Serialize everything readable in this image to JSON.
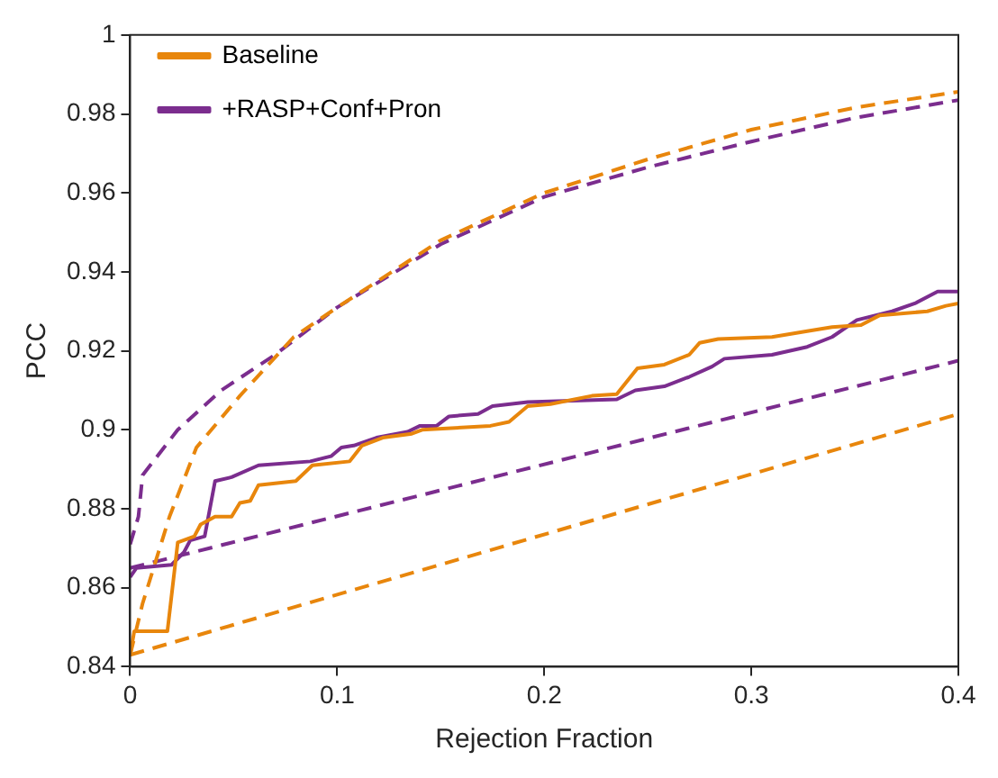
{
  "chart_data": {
    "type": "line",
    "xlabel": "Rejection Fraction",
    "ylabel": "PCC",
    "xlim": [
      0,
      0.4
    ],
    "ylim": [
      0.84,
      1
    ],
    "xticks": [
      0,
      0.1,
      0.2,
      0.3,
      0.4
    ],
    "yticks": [
      0.84,
      0.86,
      0.88,
      0.9,
      0.92,
      0.94,
      0.96,
      0.98,
      1
    ],
    "grid": false,
    "legend": "top left",
    "marker": "none",
    "series": [
      {
        "name": "Baseline",
        "color": "#e8860c",
        "line_style": "solid",
        "x": [
          0,
          0.002,
          0.018,
          0.023,
          0.031,
          0.034,
          0.041,
          0.049,
          0.053,
          0.058,
          0.062,
          0.08,
          0.088,
          0.106,
          0.112,
          0.122,
          0.136,
          0.141,
          0.174,
          0.183,
          0.192,
          0.203,
          0.223,
          0.235,
          0.245,
          0.258,
          0.27,
          0.275,
          0.284,
          0.31,
          0.327,
          0.339,
          0.353,
          0.362,
          0.385,
          0.394,
          0.4
        ],
        "values": [
          0.843,
          0.849,
          0.849,
          0.8715,
          0.873,
          0.876,
          0.878,
          0.878,
          0.8815,
          0.882,
          0.886,
          0.887,
          0.891,
          0.892,
          0.896,
          0.898,
          0.899,
          0.9,
          0.901,
          0.902,
          0.906,
          0.9065,
          0.9086,
          0.909,
          0.9156,
          0.9165,
          0.919,
          0.922,
          0.923,
          0.9235,
          0.925,
          0.926,
          0.9265,
          0.929,
          0.93,
          0.9314,
          0.932
        ]
      },
      {
        "name": "+RASP+Conf+Pron",
        "color": "#7b2d8e",
        "line_style": "solid",
        "x": [
          0,
          0.003,
          0.02,
          0.026,
          0.029,
          0.036,
          0.041,
          0.049,
          0.062,
          0.087,
          0.097,
          0.102,
          0.108,
          0.119,
          0.134,
          0.14,
          0.148,
          0.154,
          0.168,
          0.175,
          0.192,
          0.235,
          0.244,
          0.258,
          0.27,
          0.281,
          0.287,
          0.31,
          0.327,
          0.339,
          0.351,
          0.368,
          0.379,
          0.39,
          0.4
        ],
        "values": [
          0.8627,
          0.865,
          0.8658,
          0.869,
          0.872,
          0.873,
          0.887,
          0.888,
          0.891,
          0.892,
          0.8933,
          0.8955,
          0.896,
          0.898,
          0.8995,
          0.901,
          0.901,
          0.9034,
          0.904,
          0.906,
          0.907,
          0.9077,
          0.91,
          0.911,
          0.9134,
          0.916,
          0.918,
          0.919,
          0.921,
          0.9235,
          0.9278,
          0.93,
          0.932,
          0.935,
          0.935
        ]
      },
      {
        "color": "#e8860c",
        "line_style": "dashed",
        "x": [
          0,
          0.006,
          0.019,
          0.032,
          0.053,
          0.079,
          0.1,
          0.15,
          0.2,
          0.25,
          0.3,
          0.35,
          0.4
        ],
        "values": [
          0.843,
          0.856,
          0.878,
          0.8955,
          0.9086,
          0.9235,
          0.931,
          0.948,
          0.96,
          0.9685,
          0.976,
          0.9816,
          0.9856
        ]
      },
      {
        "color": "#7b2d8e",
        "line_style": "dashed",
        "x": [
          0,
          0.004,
          0.006,
          0.023,
          0.044,
          0.07,
          0.1,
          0.15,
          0.2,
          0.25,
          0.3,
          0.35,
          0.4
        ],
        "values": [
          0.871,
          0.878,
          0.8885,
          0.9,
          0.91,
          0.919,
          0.931,
          0.947,
          0.959,
          0.9665,
          0.973,
          0.979,
          0.9835
        ]
      },
      {
        "color": "#7b2d8e",
        "line_style": "dashed",
        "x": [
          0,
          0.4
        ],
        "values": [
          0.865,
          0.9175
        ]
      },
      {
        "color": "#e8860c",
        "line_style": "dashed",
        "x": [
          0,
          0.4
        ],
        "values": [
          0.843,
          0.904
        ]
      }
    ]
  }
}
